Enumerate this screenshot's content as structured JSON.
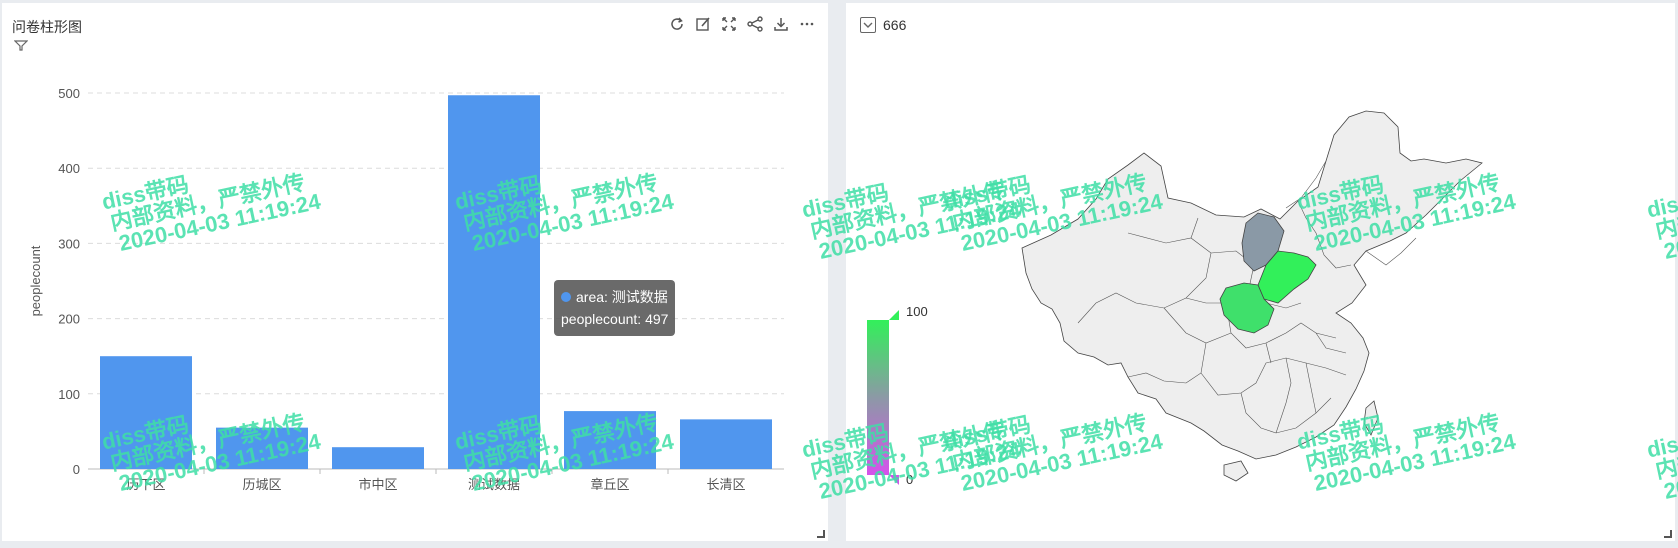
{
  "left_panel": {
    "title": "问卷柱形图",
    "toolbar_icons": [
      "refresh-icon",
      "edit-icon",
      "fullscreen-icon",
      "share-icon",
      "download-icon",
      "more-icon"
    ]
  },
  "right_panel": {
    "title": "666",
    "visual_map": {
      "max_label": "100",
      "min_label": "0",
      "colors": [
        "#32f05a",
        "#8c99a6",
        "#d552ec"
      ]
    },
    "map_colors": {
      "default": "#eeeeee",
      "beijing_region": "#8a99a6",
      "shandong": "#32f05a",
      "henan": "#3fe06b"
    }
  },
  "watermark": {
    "line1": "diss带码",
    "line2": "内部资料，严禁外传",
    "line3": "2020-04-03 11:19:24",
    "color": "#3fdfa6"
  },
  "tooltip": {
    "line1": "area: 测试数据",
    "line2": "peoplecount: 497"
  },
  "chart_data": {
    "type": "bar",
    "categories": [
      "历下区",
      "历城区",
      "市中区",
      "测试数据",
      "章丘区",
      "长清区"
    ],
    "values": [
      150,
      55,
      29,
      497,
      77,
      66
    ],
    "ylabel": "peoplecount",
    "ylim": [
      0,
      500
    ],
    "yticks": [
      0,
      100,
      200,
      300,
      400,
      500
    ],
    "color": "#5096ee",
    "grid": "dashed-horizontal"
  }
}
